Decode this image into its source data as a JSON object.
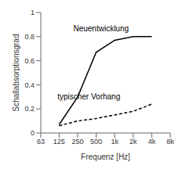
{
  "chart_data": {
    "type": "line",
    "xlabel": "Frequenz [Hz]",
    "ylabel": "Schallabsorptionsgrad",
    "log": "x",
    "grid": false,
    "x": [
      125,
      250,
      500,
      1000,
      2000,
      4000
    ],
    "series": [
      {
        "values": [
          0.07,
          0.3,
          0.67,
          0.77,
          0.8,
          0.8
        ],
        "color": "#000000",
        "line_style": "solid"
      },
      {
        "values": [
          0.06,
          0.1,
          0.12,
          0.15,
          0.18,
          0.24
        ],
        "color": "#000000",
        "line_style": "dashed"
      }
    ],
    "xlim": [
      63,
      8000
    ],
    "xticks": [
      63,
      125,
      250,
      500,
      {
        "value": 1000,
        "label": "1k"
      },
      {
        "value": 2000,
        "label": "2k"
      },
      {
        "value": 4000,
        "label": "4k"
      },
      {
        "value": 8000,
        "label": "8k"
      }
    ],
    "ylim": [
      0,
      1.0
    ],
    "yticks": [
      0,
      0.2,
      0.4,
      0.6,
      0.8,
      1
    ],
    "annotations": [
      {
        "text": "Neuentwicklung",
        "x": 600,
        "y": 0.87,
        "color": "#000000"
      },
      {
        "text": "typischer Vorhang",
        "x": 380,
        "y": 0.3,
        "color": "#000000"
      }
    ]
  }
}
